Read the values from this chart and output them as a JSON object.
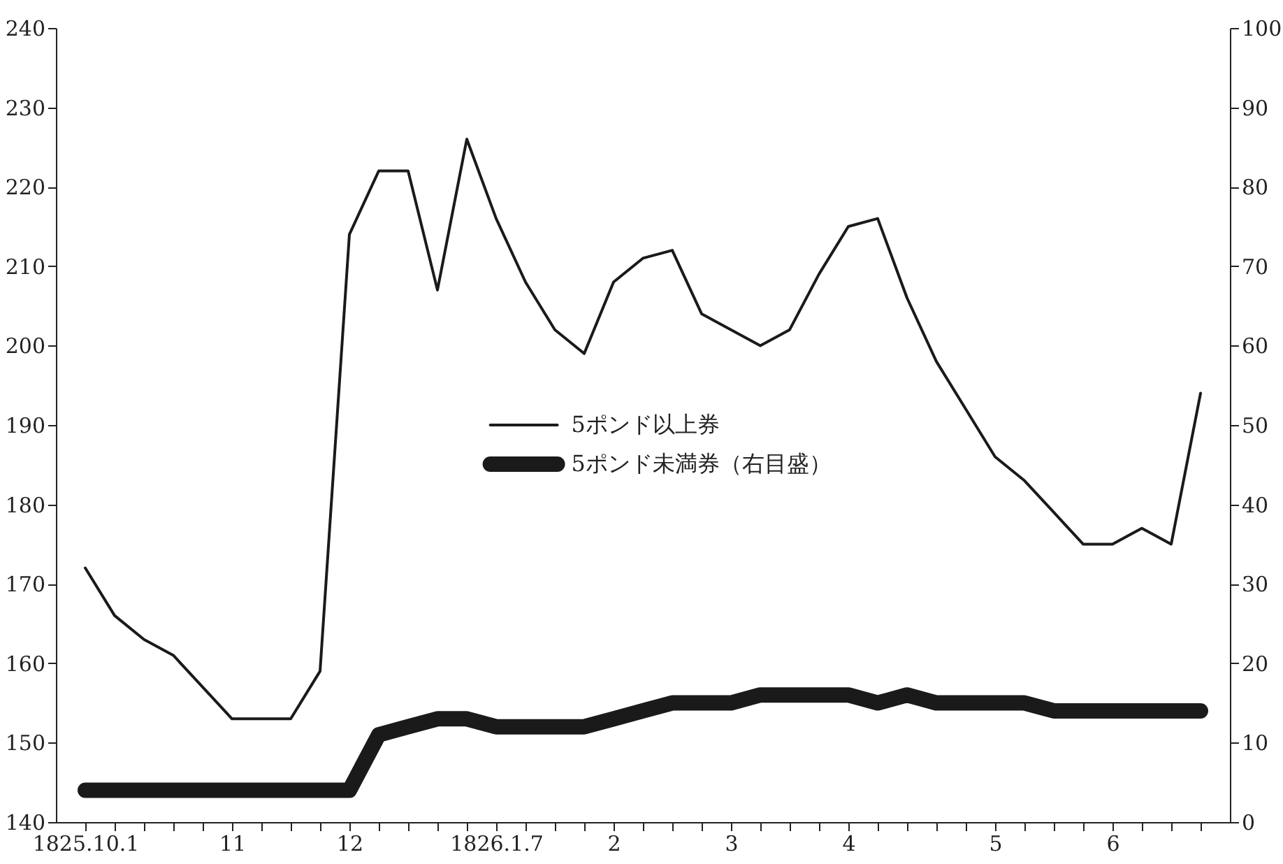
{
  "chart_data": {
    "type": "line",
    "categories": [
      "1825.10.1",
      null,
      null,
      null,
      null,
      "11",
      null,
      null,
      null,
      "12",
      null,
      null,
      null,
      null,
      "1826.1.7",
      null,
      null,
      null,
      "2",
      null,
      null,
      null,
      "3",
      null,
      null,
      null,
      "4",
      null,
      null,
      null,
      null,
      "5",
      null,
      null,
      null,
      "6",
      null,
      null,
      null
    ],
    "series": [
      {
        "name": "5ポンド以上券",
        "color": "#1a1a1a",
        "line_style": "solid",
        "values": [
          172,
          166,
          163,
          161,
          157,
          153,
          153,
          153,
          159,
          214,
          222,
          222,
          207,
          226,
          216,
          208,
          202,
          199,
          208,
          211,
          212,
          204,
          202,
          200,
          202,
          209,
          215,
          216,
          206,
          198,
          192,
          186,
          183,
          179,
          175,
          175,
          177,
          175,
          194
        ]
      },
      {
        "name": "5ポンド未満券（右目盛）",
        "color": "#1a1a1a",
        "axis": "y2",
        "line_style": "solid",
        "values": [
          4,
          4,
          4,
          4,
          4,
          4,
          4,
          4,
          4,
          4,
          11,
          12,
          13,
          13,
          12,
          12,
          12,
          12,
          13,
          14,
          15,
          15,
          15,
          16,
          16,
          16,
          16,
          15,
          16,
          15,
          15,
          15,
          15,
          14,
          14,
          14,
          14,
          14,
          14
        ]
      }
    ],
    "ylim": [
      140,
      240
    ],
    "yticks": [
      140,
      150,
      160,
      170,
      180,
      190,
      200,
      210,
      220,
      230,
      240
    ],
    "y2lim": [
      0,
      100
    ],
    "y2ticks": [
      0,
      10,
      20,
      30,
      40,
      50,
      60,
      70,
      80,
      90,
      100
    ],
    "grid": false,
    "legend": "center",
    "marker": "none"
  }
}
